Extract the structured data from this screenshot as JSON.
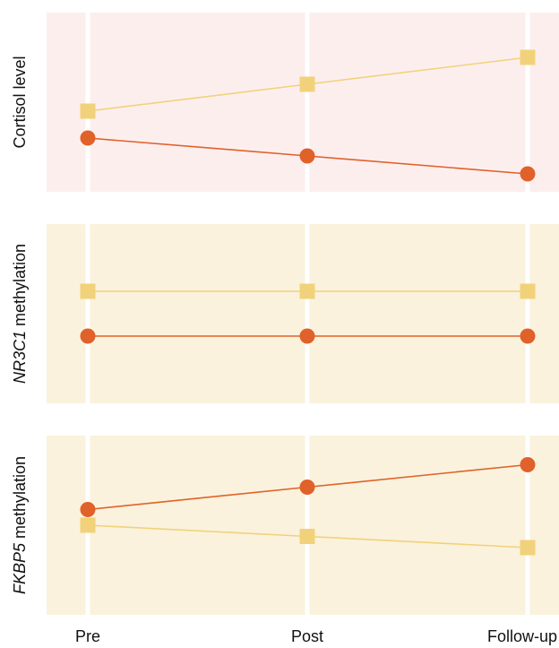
{
  "chart_data": {
    "type": "line",
    "x_categories": [
      "Pre",
      "Post",
      "Follow-up"
    ],
    "panels": [
      {
        "ylabel_prefix_italic": "",
        "ylabel_suffix": "Cortisol level",
        "background": "#fdeeee",
        "series": [
          {
            "marker": "square",
            "color": "#f1d27a",
            "values": [
              4.5,
              5.1,
              5.7
            ]
          },
          {
            "marker": "circle",
            "color": "#e0612a",
            "values": [
              3.9,
              3.5,
              3.1
            ]
          }
        ],
        "ylim": [
          2.7,
          6.7
        ]
      },
      {
        "ylabel_prefix_italic": "NR3C1",
        "ylabel_suffix": " methylation",
        "background": "#faf2dc",
        "series": [
          {
            "marker": "square",
            "color": "#f1d27a",
            "values": [
              5.0,
              5.0,
              5.0
            ]
          },
          {
            "marker": "circle",
            "color": "#e0612a",
            "values": [
              4.0,
              4.0,
              4.0
            ]
          }
        ],
        "ylim": [
          2.5,
          6.5
        ]
      },
      {
        "ylabel_prefix_italic": "FKBP5",
        "ylabel_suffix": " methylation",
        "background": "#faf2dc",
        "series": [
          {
            "marker": "square",
            "color": "#f1d27a",
            "values": [
              4.0,
              3.75,
              3.5
            ]
          },
          {
            "marker": "circle",
            "color": "#e0612a",
            "values": [
              4.35,
              4.85,
              5.35
            ]
          }
        ],
        "ylim": [
          2.0,
          6.0
        ]
      }
    ]
  }
}
